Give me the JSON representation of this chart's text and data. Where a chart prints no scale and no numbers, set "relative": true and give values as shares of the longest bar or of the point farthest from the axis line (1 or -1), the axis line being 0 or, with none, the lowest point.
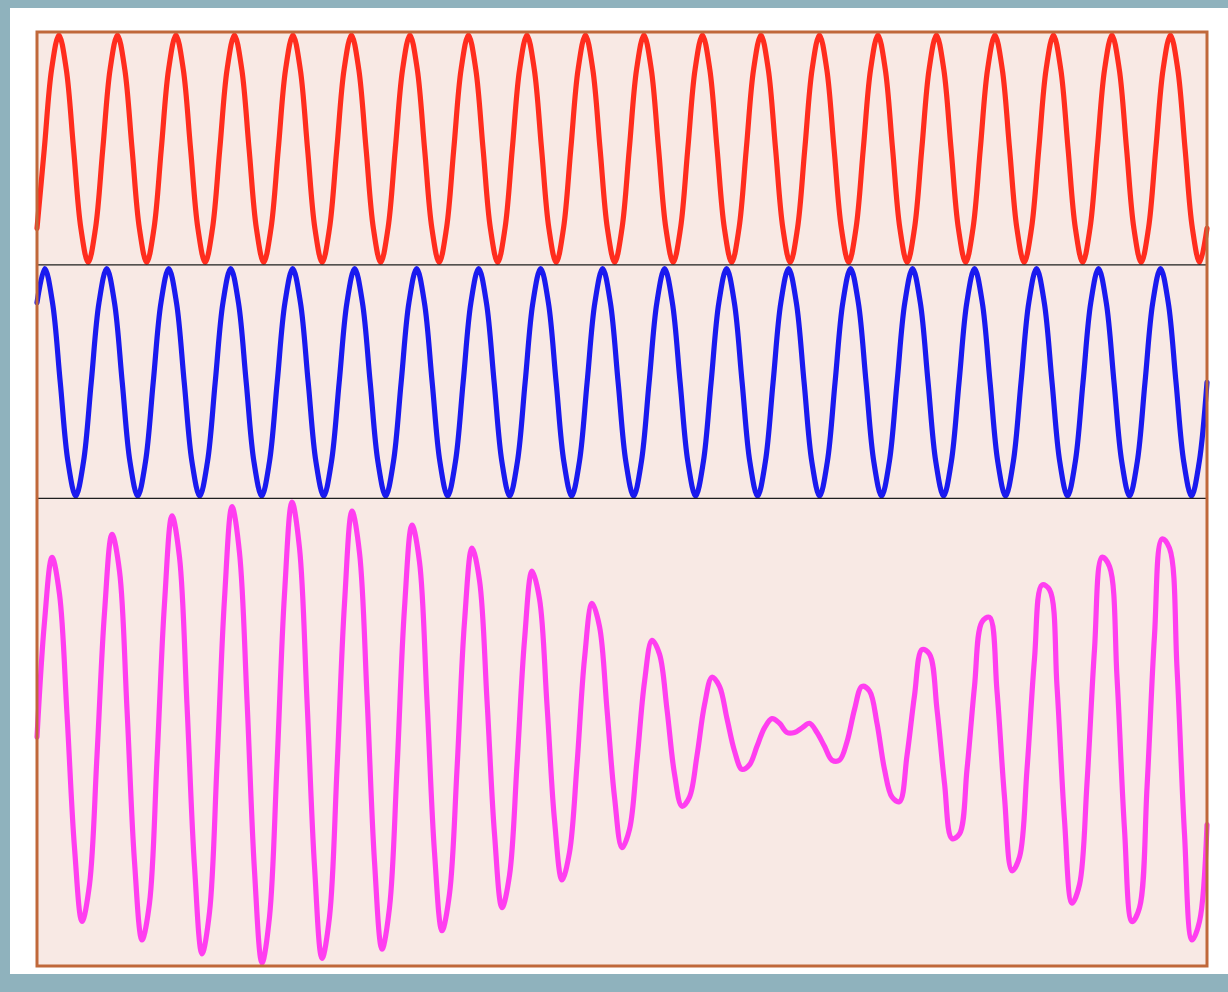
{
  "chart_data": [
    {
      "type": "line",
      "relative": true,
      "color": "#ff2d1e",
      "categories": [
        null,
        null,
        null,
        null,
        null,
        null,
        null,
        null,
        null,
        null,
        null,
        null,
        null,
        null,
        null,
        null,
        null,
        null,
        null,
        null,
        null,
        null,
        null,
        null,
        null,
        null,
        null,
        null,
        null,
        null,
        null,
        null,
        null,
        null,
        null,
        null,
        null,
        null,
        null,
        null,
        null,
        null,
        null,
        null,
        null,
        null,
        null,
        null,
        null,
        null,
        null,
        null,
        null,
        null,
        null,
        null,
        null,
        null,
        null,
        null,
        null,
        null,
        null,
        null,
        null,
        null,
        null,
        null,
        null,
        null,
        null,
        null,
        null,
        null,
        null,
        null,
        null,
        null,
        null,
        null,
        null,
        null,
        null,
        null,
        null,
        null,
        null,
        null,
        null,
        null,
        null,
        null,
        null,
        null,
        null,
        null,
        null,
        null,
        null,
        null,
        null,
        null,
        null,
        null,
        null,
        null,
        null,
        null,
        null,
        null,
        null,
        null,
        null,
        null,
        null,
        null,
        null,
        null,
        null,
        null,
        null,
        null,
        null,
        null,
        null,
        null,
        null,
        null,
        null,
        null,
        null,
        null,
        null,
        null,
        null,
        null,
        null,
        null,
        null,
        null,
        null,
        null,
        null,
        null,
        null,
        null,
        null,
        null,
        null,
        null,
        null,
        null,
        null,
        null,
        null,
        null,
        null,
        null,
        null,
        null,
        null
      ],
      "values": [
        0.15,
        0.5,
        0.85,
        1,
        0.85,
        0.5,
        0.15,
        0,
        0.15,
        0.5,
        0.85,
        1,
        0.85,
        0.5,
        0.15,
        0,
        0.15,
        0.5,
        0.85,
        1,
        0.85,
        0.5,
        0.15,
        0,
        0.15,
        0.5,
        0.85,
        1,
        0.85,
        0.5,
        0.15,
        0,
        0.15,
        0.5,
        0.85,
        1,
        0.85,
        0.5,
        0.15,
        0,
        0.15,
        0.5,
        0.85,
        1,
        0.85,
        0.5,
        0.15,
        0,
        0.15,
        0.5,
        0.85,
        1,
        0.85,
        0.5,
        0.15,
        0,
        0.15,
        0.5,
        0.85,
        1,
        0.85,
        0.5,
        0.15,
        0,
        0.15,
        0.5,
        0.85,
        1,
        0.85,
        0.5,
        0.15,
        0,
        0.15,
        0.5,
        0.85,
        1,
        0.85,
        0.5,
        0.15,
        0,
        0.15,
        0.5,
        0.85,
        1,
        0.85,
        0.5,
        0.15,
        0,
        0.15,
        0.5,
        0.85,
        1,
        0.85,
        0.5,
        0.15,
        0,
        0.15,
        0.5,
        0.85,
        1,
        0.85,
        0.5,
        0.15,
        0,
        0.15,
        0.5,
        0.85,
        1,
        0.85,
        0.5,
        0.15,
        0,
        0.15,
        0.5,
        0.85,
        1,
        0.85,
        0.5,
        0.15,
        0,
        0.15,
        0.5,
        0.85,
        1,
        0.85,
        0.5,
        0.15,
        0,
        0.15,
        0.5,
        0.85,
        1,
        0.85,
        0.5,
        0.15,
        0,
        0.15,
        0.5,
        0.85,
        1,
        0.85,
        0.5,
        0.15,
        0,
        0.15,
        0.5,
        0.85,
        1,
        0.85,
        0.5,
        0.15,
        0,
        0.15,
        0.5,
        0.85,
        1,
        0.85,
        0.5,
        0.15,
        0,
        0.15
      ]
    },
    {
      "type": "line",
      "relative": true,
      "color": "#1a1aef",
      "categories": [
        null,
        null,
        null,
        null,
        null,
        null,
        null,
        null,
        null,
        null,
        null,
        null,
        null,
        null,
        null,
        null,
        null,
        null,
        null,
        null,
        null,
        null,
        null,
        null,
        null,
        null,
        null,
        null,
        null,
        null,
        null,
        null,
        null,
        null,
        null,
        null,
        null,
        null,
        null,
        null,
        null,
        null,
        null,
        null,
        null,
        null,
        null,
        null,
        null,
        null,
        null,
        null,
        null,
        null,
        null,
        null,
        null,
        null,
        null,
        null,
        null,
        null,
        null,
        null,
        null,
        null,
        null,
        null,
        null,
        null,
        null,
        null,
        null,
        null,
        null,
        null,
        null,
        null,
        null,
        null,
        null,
        null,
        null,
        null,
        null,
        null,
        null,
        null,
        null,
        null,
        null,
        null,
        null,
        null,
        null,
        null,
        null,
        null,
        null,
        null,
        null,
        null,
        null,
        null,
        null,
        null,
        null,
        null,
        null,
        null,
        null,
        null,
        null,
        null,
        null,
        null,
        null,
        null,
        null,
        null,
        null,
        null,
        null,
        null,
        null,
        null,
        null,
        null,
        null,
        null,
        null,
        null,
        null,
        null,
        null,
        null,
        null,
        null,
        null,
        null,
        null,
        null,
        null,
        null,
        null,
        null,
        null,
        null,
        null,
        null,
        null,
        null
      ],
      "values": [
        0.85,
        1,
        0.85,
        0.5,
        0.15,
        0,
        0.15,
        0.5,
        0.85,
        1,
        0.85,
        0.5,
        0.15,
        0,
        0.15,
        0.5,
        0.85,
        1,
        0.85,
        0.5,
        0.15,
        0,
        0.15,
        0.5,
        0.85,
        1,
        0.85,
        0.5,
        0.15,
        0,
        0.15,
        0.5,
        0.85,
        1,
        0.85,
        0.5,
        0.15,
        0,
        0.15,
        0.5,
        0.85,
        1,
        0.85,
        0.5,
        0.15,
        0,
        0.15,
        0.5,
        0.85,
        1,
        0.85,
        0.5,
        0.15,
        0,
        0.15,
        0.5,
        0.85,
        1,
        0.85,
        0.5,
        0.15,
        0,
        0.15,
        0.5,
        0.85,
        1,
        0.85,
        0.5,
        0.15,
        0,
        0.15,
        0.5,
        0.85,
        1,
        0.85,
        0.5,
        0.15,
        0,
        0.15,
        0.5,
        0.85,
        1,
        0.85,
        0.5,
        0.15,
        0,
        0.15,
        0.5,
        0.85,
        1,
        0.85,
        0.5,
        0.15,
        0,
        0.15,
        0.5,
        0.85,
        1,
        0.85,
        0.5,
        0.15,
        0,
        0.15,
        0.5,
        0.85,
        1,
        0.85,
        0.5,
        0.15,
        0,
        0.15,
        0.5,
        0.85,
        1,
        0.85,
        0.5,
        0.15,
        0,
        0.15,
        0.5,
        0.85,
        1,
        0.85,
        0.5,
        0.15,
        0,
        0.15,
        0.5,
        0.85,
        1,
        0.85,
        0.5,
        0.15,
        0,
        0.15,
        0.5,
        0.85,
        1,
        0.85,
        0.5,
        0.15,
        0,
        0.15,
        0.5,
        0.85,
        1,
        0.85,
        0.5,
        0.15,
        0,
        0.15,
        0.5
      ]
    },
    {
      "type": "line",
      "relative": true,
      "color": "#ff3ef0",
      "categories": [
        null,
        null,
        null,
        null,
        null,
        null,
        null,
        null,
        null,
        null,
        null,
        null,
        null,
        null,
        null,
        null,
        null,
        null,
        null,
        null,
        null,
        null,
        null,
        null,
        null,
        null,
        null,
        null,
        null,
        null,
        null,
        null,
        null,
        null,
        null,
        null,
        null,
        null,
        null,
        null,
        null,
        null,
        null,
        null,
        null,
        null,
        null,
        null,
        null,
        null,
        null,
        null,
        null,
        null,
        null,
        null,
        null,
        null,
        null,
        null,
        null,
        null,
        null,
        null,
        null,
        null,
        null,
        null,
        null,
        null,
        null,
        null,
        null,
        null,
        null,
        null,
        null,
        null,
        null,
        null,
        null,
        null,
        null,
        null,
        null,
        null,
        null,
        null,
        null,
        null,
        null,
        null,
        null,
        null,
        null,
        null,
        null,
        null,
        null,
        null,
        null,
        null,
        null,
        null,
        null,
        null,
        null,
        null,
        null,
        null,
        null,
        null,
        null,
        null,
        null,
        null,
        null,
        null,
        null,
        null,
        null,
        null,
        null,
        null,
        null,
        null,
        null,
        null,
        null,
        null,
        null,
        null,
        null,
        null,
        null,
        null,
        null,
        null,
        null,
        null,
        null,
        null,
        null,
        null,
        null,
        null,
        null,
        null,
        null,
        null,
        null,
        null,
        null,
        null,
        null,
        null,
        null
      ],
      "values": [
        0.49,
        0.74,
        0.88,
        0.8,
        0.54,
        0.25,
        0.09,
        0.17,
        0.45,
        0.76,
        0.93,
        0.85,
        0.55,
        0.22,
        0.05,
        0.13,
        0.44,
        0.78,
        0.97,
        0.88,
        0.56,
        0.21,
        0.02,
        0.11,
        0.43,
        0.79,
        0.99,
        0.89,
        0.57,
        0.2,
        0,
        0.1,
        0.43,
        0.8,
        1,
        0.9,
        0.57,
        0.21,
        0.01,
        0.1,
        0.42,
        0.78,
        0.98,
        0.89,
        0.58,
        0.22,
        0.03,
        0.12,
        0.42,
        0.77,
        0.95,
        0.87,
        0.57,
        0.24,
        0.07,
        0.15,
        0.42,
        0.74,
        0.9,
        0.83,
        0.57,
        0.28,
        0.12,
        0.19,
        0.43,
        0.7,
        0.85,
        0.79,
        0.56,
        0.31,
        0.18,
        0.24,
        0.43,
        0.66,
        0.78,
        0.73,
        0.55,
        0.36,
        0.25,
        0.29,
        0.44,
        0.61,
        0.7,
        0.67,
        0.55,
        0.41,
        0.34,
        0.36,
        0.45,
        0.56,
        0.62,
        0.6,
        0.53,
        0.46,
        0.42,
        0.43,
        0.47,
        0.51,
        0.53,
        0.52,
        0.5,
        0.5,
        0.51,
        0.52,
        0.5,
        0.47,
        0.44,
        0.44,
        0.48,
        0.55,
        0.6,
        0.59,
        0.52,
        0.42,
        0.36,
        0.35,
        0.45,
        0.58,
        0.68,
        0.67,
        0.55,
        0.39,
        0.27,
        0.28,
        0.42,
        0.6,
        0.74,
        0.75,
        0.59,
        0.36,
        0.2,
        0.23,
        0.42,
        0.66,
        0.82,
        0.81,
        0.6,
        0.31,
        0.13,
        0.17,
        0.39,
        0.68,
        0.88,
        0.86,
        0.62,
        0.29,
        0.09,
        0.12,
        0.38,
        0.71,
        0.92,
        0.9,
        0.64,
        0.28,
        0.05,
        0.09,
        0.3
      ]
    }
  ]
}
